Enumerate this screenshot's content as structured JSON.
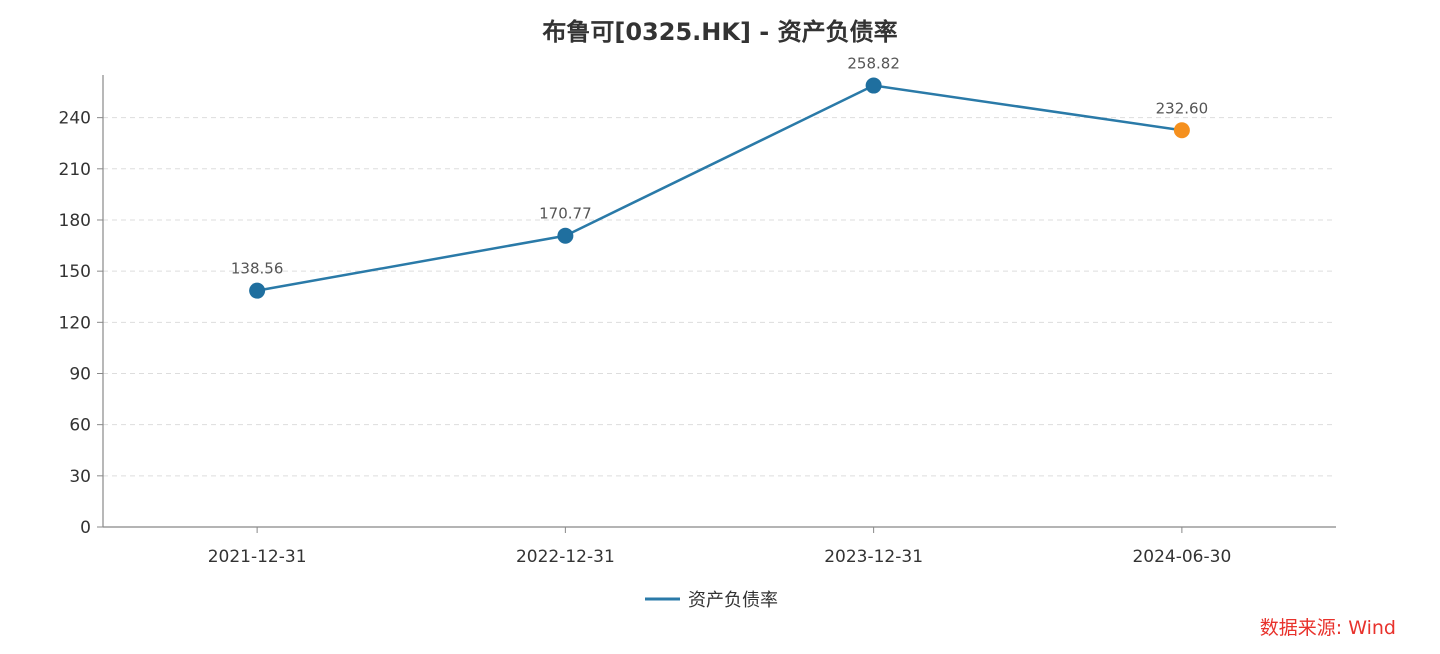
{
  "chart_data": {
    "type": "line",
    "title": "布鲁可[0325.HK] - 资产负债率",
    "categories": [
      "2021-12-31",
      "2022-12-31",
      "2023-12-31",
      "2024-06-30"
    ],
    "series": [
      {
        "name": "资产负债率",
        "values": [
          138.56,
          170.77,
          258.82,
          232.6
        ]
      }
    ],
    "data_labels": [
      "138.56",
      "170.77",
      "258.82",
      "232.60"
    ],
    "yticks": [
      0,
      30,
      60,
      90,
      120,
      150,
      180,
      210,
      240
    ],
    "ylim": [
      0,
      265
    ],
    "grid": true,
    "grid_style": "dashed horizontal",
    "legend_position": "bottom-center",
    "colors": {
      "line": "#2a7aa8",
      "marker": "#1f6f9f",
      "highlight_marker": "#f5901e",
      "axis": "#888888",
      "grid": "#dddddd"
    },
    "source": "数据来源: Wind",
    "source_color": "#e8322c"
  }
}
